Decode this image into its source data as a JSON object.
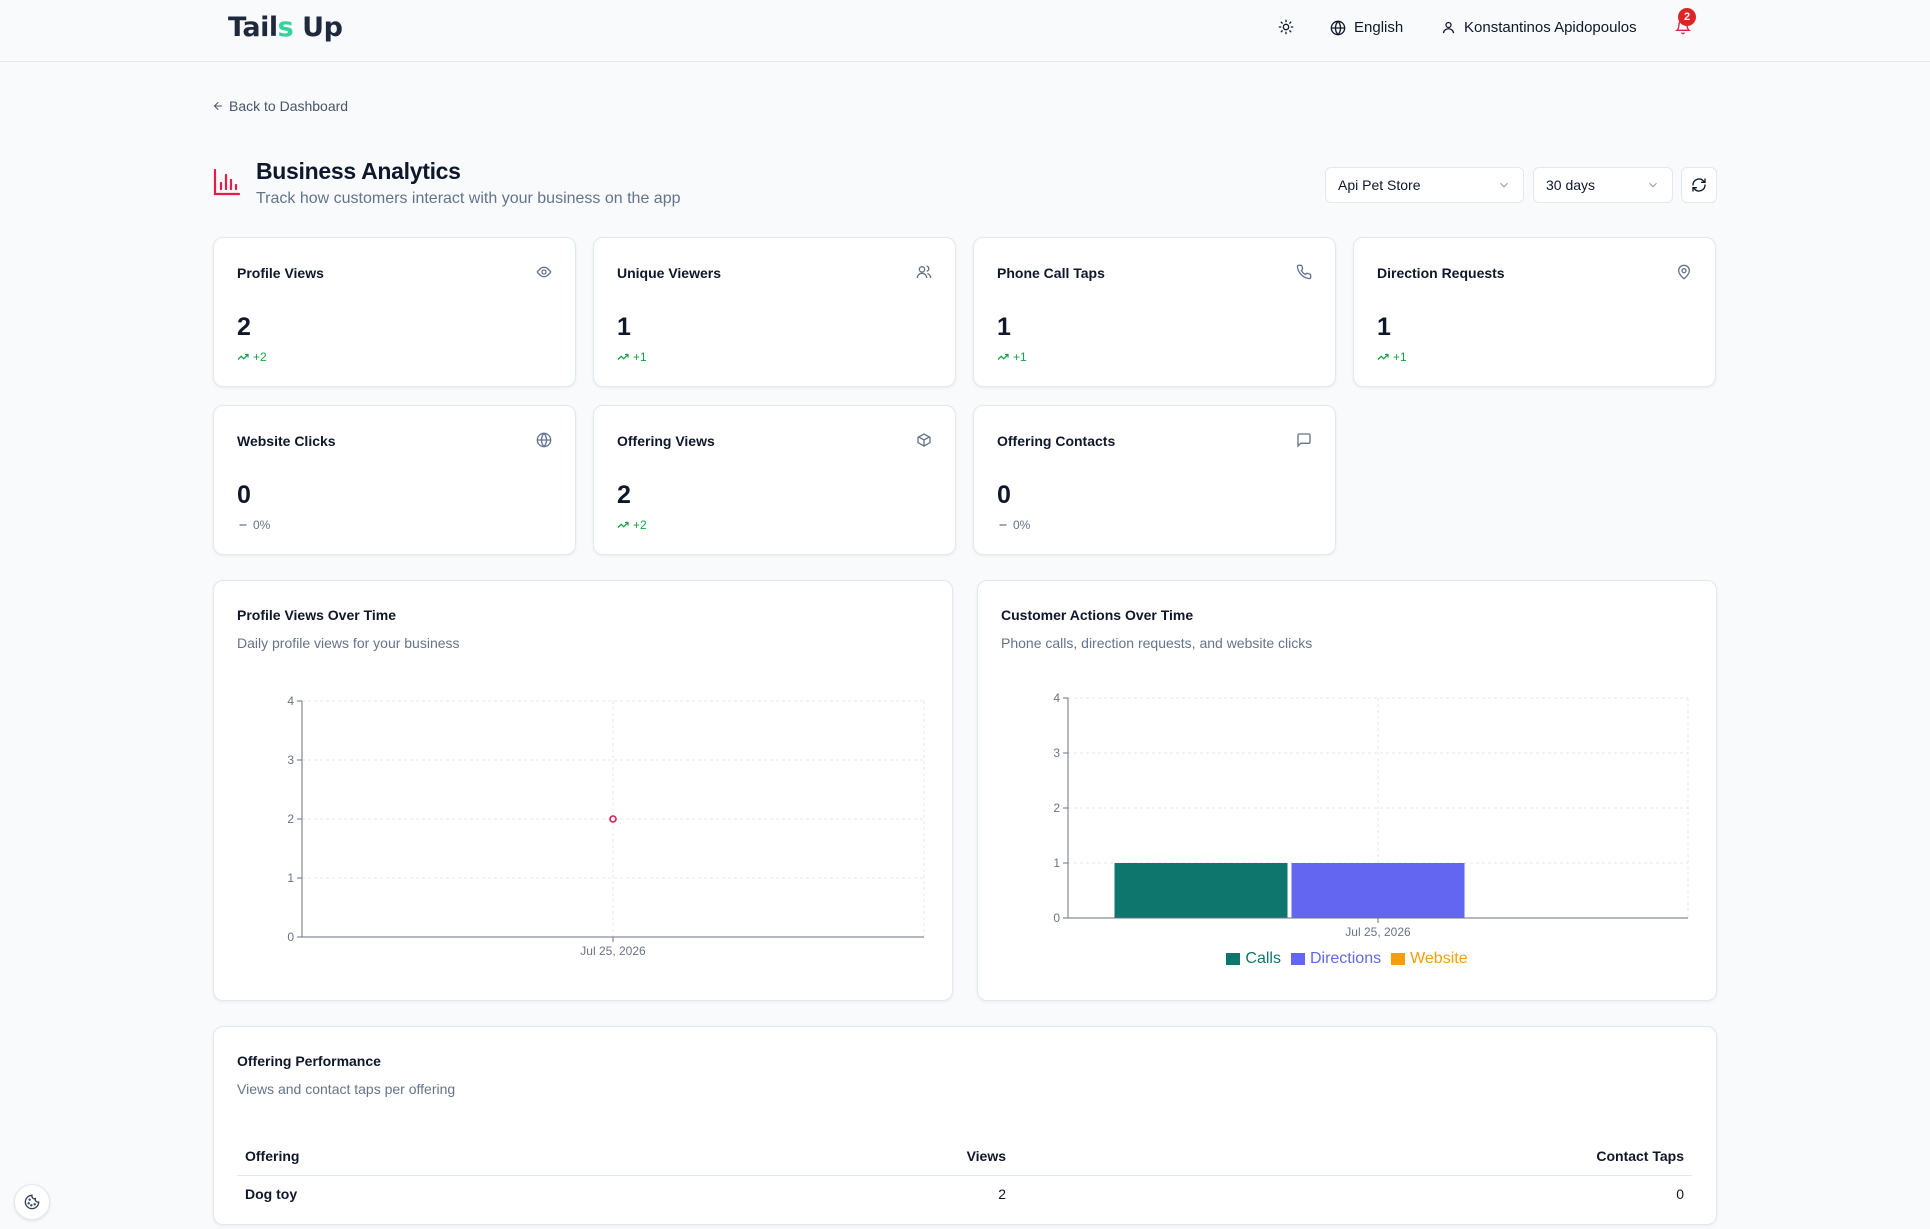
{
  "header": {
    "logo": {
      "part1": "Tail",
      "part2": "s",
      "part3": " Up"
    },
    "language": "English",
    "user_name": "Konstantinos Apidopoulos",
    "notification_count": "2"
  },
  "nav": {
    "back_label": "Back to Dashboard"
  },
  "page": {
    "title": "Business Analytics",
    "subtitle": "Track how customers interact with your business on the app",
    "store_select": "Api Pet Store",
    "period_select": "30 days"
  },
  "stats": [
    {
      "label": "Profile Views",
      "value": "2",
      "delta": "+2",
      "trend": "up",
      "icon": "eye-icon"
    },
    {
      "label": "Unique Viewers",
      "value": "1",
      "delta": "+1",
      "trend": "up",
      "icon": "users-icon"
    },
    {
      "label": "Phone Call Taps",
      "value": "1",
      "delta": "+1",
      "trend": "up",
      "icon": "phone-icon"
    },
    {
      "label": "Direction Requests",
      "value": "1",
      "delta": "+1",
      "trend": "up",
      "icon": "map-pin-icon"
    },
    {
      "label": "Website Clicks",
      "value": "0",
      "delta": "0%",
      "trend": "flat",
      "icon": "globe-icon"
    },
    {
      "label": "Offering Views",
      "value": "2",
      "delta": "+2",
      "trend": "up",
      "icon": "package-icon"
    },
    {
      "label": "Offering Contacts",
      "value": "0",
      "delta": "0%",
      "trend": "flat",
      "icon": "message-square-icon"
    }
  ],
  "profile_chart": {
    "title": "Profile Views Over Time",
    "subtitle": "Daily profile views for your business"
  },
  "actions_chart": {
    "title": "Customer Actions Over Time",
    "subtitle": "Phone calls, direction requests, and website clicks"
  },
  "offering_performance": {
    "title": "Offering Performance",
    "subtitle": "Views and contact taps per offering",
    "columns": [
      "Offering",
      "Views",
      "Contact Taps"
    ],
    "rows": [
      {
        "offering": "Dog toy",
        "views": "2",
        "contact_taps": "0"
      }
    ]
  },
  "colors": {
    "accent_red": "#e11d48",
    "calls": "#0f766e",
    "directions": "#6366f1",
    "website": "#f59e0b",
    "positive": "#16a34a"
  },
  "chart_data": [
    {
      "type": "line",
      "title": "Profile Views Over Time",
      "x": [
        "Jul 25, 2026"
      ],
      "series": [
        {
          "values": [
            2
          ]
        }
      ],
      "ylim": [
        0,
        4
      ],
      "yticks": [
        0,
        1,
        2,
        3,
        4
      ],
      "grid": true
    },
    {
      "type": "bar",
      "title": "Customer Actions Over Time",
      "categories": [
        "Jul 25, 2026"
      ],
      "series": [
        {
          "name": "Calls",
          "values": [
            1
          ]
        },
        {
          "name": "Directions",
          "values": [
            1
          ]
        },
        {
          "name": "Website",
          "values": [
            0
          ]
        }
      ],
      "ylim": [
        0,
        4
      ],
      "yticks": [
        0,
        1,
        2,
        3,
        4
      ],
      "legend": "bottom",
      "grid": true
    }
  ]
}
